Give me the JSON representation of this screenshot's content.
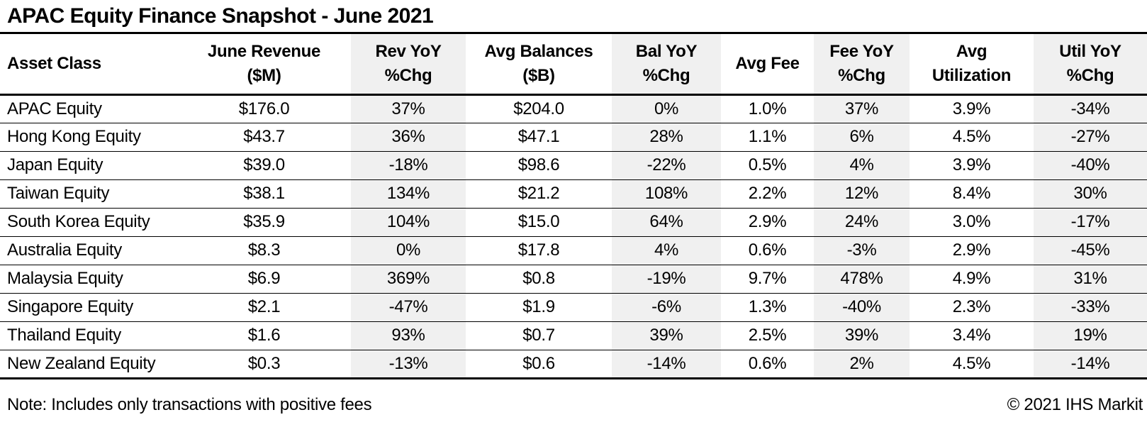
{
  "title": "APAC Equity Finance Snapshot - June 2021",
  "colors": {
    "background": "#ffffff",
    "text": "#000000",
    "border": "#000000",
    "shaded_column": "#f0f0f0"
  },
  "table": {
    "columns": [
      {
        "id": "asset-class",
        "label_line1": "Asset Class",
        "label_line2": "",
        "shaded": false,
        "align": "left"
      },
      {
        "id": "june-revenue",
        "label_line1": "June Revenue",
        "label_line2": "($M)",
        "shaded": false,
        "align": "center"
      },
      {
        "id": "rev-yoy",
        "label_line1": "Rev YoY",
        "label_line2": "%Chg",
        "shaded": true,
        "align": "center"
      },
      {
        "id": "avg-balances",
        "label_line1": "Avg Balances",
        "label_line2": "($B)",
        "shaded": false,
        "align": "center"
      },
      {
        "id": "bal-yoy",
        "label_line1": "Bal YoY",
        "label_line2": "%Chg",
        "shaded": true,
        "align": "center"
      },
      {
        "id": "avg-fee",
        "label_line1": "Avg Fee",
        "label_line2": "",
        "shaded": false,
        "align": "center"
      },
      {
        "id": "fee-yoy",
        "label_line1": "Fee YoY",
        "label_line2": "%Chg",
        "shaded": true,
        "align": "center"
      },
      {
        "id": "avg-utilization",
        "label_line1": "Avg",
        "label_line2": "Utilization",
        "shaded": false,
        "align": "center"
      },
      {
        "id": "util-yoy",
        "label_line1": "Util YoY",
        "label_line2": "%Chg",
        "shaded": true,
        "align": "center"
      }
    ],
    "rows": [
      [
        "APAC Equity",
        "$176.0",
        "37%",
        "$204.0",
        "0%",
        "1.0%",
        "37%",
        "3.9%",
        "-34%"
      ],
      [
        "Hong Kong Equity",
        "$43.7",
        "36%",
        "$47.1",
        "28%",
        "1.1%",
        "6%",
        "4.5%",
        "-27%"
      ],
      [
        "Japan Equity",
        "$39.0",
        "-18%",
        "$98.6",
        "-22%",
        "0.5%",
        "4%",
        "3.9%",
        "-40%"
      ],
      [
        "Taiwan Equity",
        "$38.1",
        "134%",
        "$21.2",
        "108%",
        "2.2%",
        "12%",
        "8.4%",
        "30%"
      ],
      [
        "South Korea Equity",
        "$35.9",
        "104%",
        "$15.0",
        "64%",
        "2.9%",
        "24%",
        "3.0%",
        "-17%"
      ],
      [
        "Australia Equity",
        "$8.3",
        "0%",
        "$17.8",
        "4%",
        "0.6%",
        "-3%",
        "2.9%",
        "-45%"
      ],
      [
        "Malaysia Equity",
        "$6.9",
        "369%",
        "$0.8",
        "-19%",
        "9.7%",
        "478%",
        "4.9%",
        "31%"
      ],
      [
        "Singapore Equity",
        "$2.1",
        "-47%",
        "$1.9",
        "-6%",
        "1.3%",
        "-40%",
        "2.3%",
        "-33%"
      ],
      [
        "Thailand Equity",
        "$1.6",
        "93%",
        "$0.7",
        "39%",
        "2.5%",
        "39%",
        "3.4%",
        "19%"
      ],
      [
        "New Zealand Equity",
        "$0.3",
        "-13%",
        "$0.6",
        "-14%",
        "0.6%",
        "2%",
        "4.5%",
        "-14%"
      ]
    ]
  },
  "footer": {
    "note": "Note: Includes only transactions with positive fees",
    "copyright": "© 2021 IHS Markit"
  },
  "chart_data": {
    "type": "table",
    "title": "APAC Equity Finance Snapshot - June 2021",
    "columns": [
      "Asset Class",
      "June Revenue ($M)",
      "Rev YoY %Chg",
      "Avg Balances ($B)",
      "Bal YoY %Chg",
      "Avg Fee",
      "Fee YoY %Chg",
      "Avg Utilization",
      "Util YoY %Chg"
    ],
    "rows": [
      [
        "APAC Equity",
        "$176.0",
        "37%",
        "$204.0",
        "0%",
        "1.0%",
        "37%",
        "3.9%",
        "-34%"
      ],
      [
        "Hong Kong Equity",
        "$43.7",
        "36%",
        "$47.1",
        "28%",
        "1.1%",
        "6%",
        "4.5%",
        "-27%"
      ],
      [
        "Japan Equity",
        "$39.0",
        "-18%",
        "$98.6",
        "-22%",
        "0.5%",
        "4%",
        "3.9%",
        "-40%"
      ],
      [
        "Taiwan Equity",
        "$38.1",
        "134%",
        "$21.2",
        "108%",
        "2.2%",
        "12%",
        "8.4%",
        "30%"
      ],
      [
        "South Korea Equity",
        "$35.9",
        "104%",
        "$15.0",
        "64%",
        "2.9%",
        "24%",
        "3.0%",
        "-17%"
      ],
      [
        "Australia Equity",
        "$8.3",
        "0%",
        "$17.8",
        "4%",
        "0.6%",
        "-3%",
        "2.9%",
        "-45%"
      ],
      [
        "Malaysia Equity",
        "$6.9",
        "369%",
        "$0.8",
        "-19%",
        "9.7%",
        "478%",
        "4.9%",
        "31%"
      ],
      [
        "Singapore Equity",
        "$2.1",
        "-47%",
        "$1.9",
        "-6%",
        "1.3%",
        "-40%",
        "2.3%",
        "-33%"
      ],
      [
        "Thailand Equity",
        "$1.6",
        "93%",
        "$0.7",
        "39%",
        "2.5%",
        "39%",
        "3.4%",
        "19%"
      ],
      [
        "New Zealand Equity",
        "$0.3",
        "-13%",
        "$0.6",
        "-14%",
        "0.6%",
        "2%",
        "4.5%",
        "-14%"
      ]
    ],
    "note": "Note: Includes only transactions with positive fees",
    "attribution": "© 2021 IHS Markit",
    "shaded_columns": [
      "Rev YoY %Chg",
      "Bal YoY %Chg",
      "Fee YoY %Chg",
      "Util YoY %Chg"
    ]
  }
}
